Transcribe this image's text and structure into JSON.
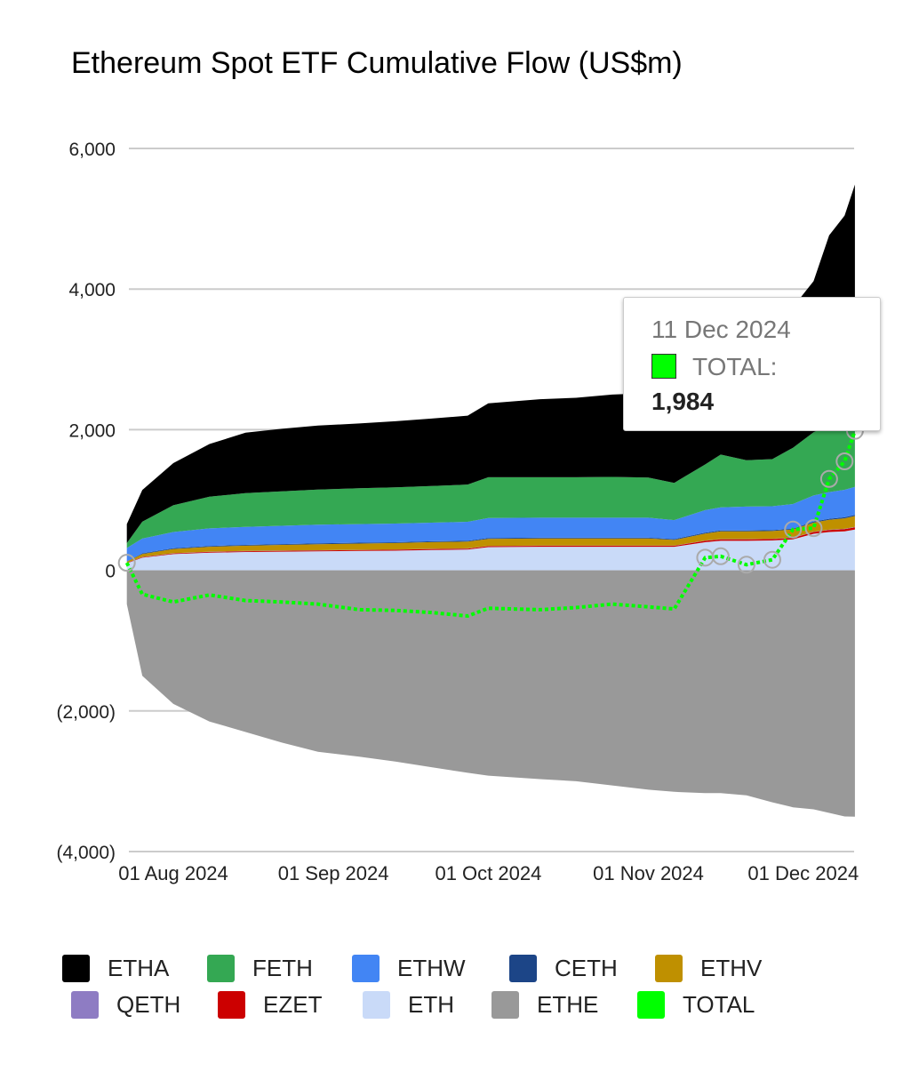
{
  "chart_data": {
    "type": "area",
    "stacked": true,
    "title": "Ethereum Spot ETF Cumulative Flow (US$m)",
    "xlabel": "",
    "ylabel": "",
    "ylim": [
      -4000,
      6000
    ],
    "yticks": [
      6000,
      4000,
      2000,
      0,
      -2000,
      -4000
    ],
    "ytick_labels": [
      "6,000",
      "4,000",
      "2,000",
      "0",
      "(2,000)",
      "(4,000)"
    ],
    "xtick_labels": [
      "01 Aug 2024",
      "01 Sep 2024",
      "01 Oct 2024",
      "01 Nov 2024",
      "01 Dec 2024"
    ],
    "xticks": [
      "2024-08-01",
      "2024-09-01",
      "2024-10-01",
      "2024-11-01",
      "2024-12-01"
    ],
    "grid": true,
    "legend_position": "bottom",
    "x": [
      "2024-07-23",
      "2024-07-26",
      "2024-08-01",
      "2024-08-08",
      "2024-08-15",
      "2024-08-22",
      "2024-08-29",
      "2024-09-06",
      "2024-09-13",
      "2024-09-20",
      "2024-09-27",
      "2024-10-01",
      "2024-10-11",
      "2024-10-18",
      "2024-10-25",
      "2024-11-01",
      "2024-11-06",
      "2024-11-12",
      "2024-11-15",
      "2024-11-20",
      "2024-11-25",
      "2024-11-29",
      "2024-12-03",
      "2024-12-06",
      "2024-12-09",
      "2024-12-11"
    ],
    "series": [
      {
        "name": "ETH",
        "color": "#c9daf8",
        "values": [
          100,
          180,
          230,
          250,
          260,
          265,
          270,
          275,
          280,
          290,
          295,
          330,
          335,
          335,
          335,
          335,
          335,
          400,
          420,
          420,
          425,
          440,
          520,
          545,
          555,
          580
        ]
      },
      {
        "name": "EZET",
        "color": "#cc0000",
        "values": [
          5,
          8,
          10,
          12,
          12,
          13,
          13,
          13,
          13,
          13,
          14,
          14,
          14,
          14,
          14,
          14,
          14,
          20,
          20,
          20,
          20,
          22,
          25,
          28,
          30,
          32
        ]
      },
      {
        "name": "QETH",
        "color": "#8e7cc3",
        "values": [
          2,
          3,
          3,
          3,
          3,
          3,
          3,
          3,
          3,
          3,
          3,
          3,
          3,
          3,
          3,
          3,
          3,
          4,
          4,
          4,
          4,
          4,
          4,
          5,
          5,
          5
        ]
      },
      {
        "name": "ETHV",
        "color": "#bf9000",
        "values": [
          15,
          40,
          60,
          70,
          75,
          80,
          85,
          90,
          92,
          95,
          96,
          100,
          100,
          100,
          100,
          100,
          80,
          100,
          110,
          110,
          110,
          115,
          130,
          140,
          150,
          155
        ]
      },
      {
        "name": "CETH",
        "color": "#1c4587",
        "values": [
          5,
          10,
          12,
          12,
          12,
          12,
          12,
          12,
          12,
          12,
          12,
          12,
          12,
          12,
          12,
          12,
          12,
          12,
          12,
          12,
          12,
          12,
          15,
          15,
          15,
          15
        ]
      },
      {
        "name": "ETHW",
        "color": "#4285f4",
        "values": [
          190,
          210,
          230,
          250,
          255,
          260,
          265,
          265,
          265,
          265,
          270,
          285,
          285,
          285,
          285,
          285,
          270,
          320,
          330,
          340,
          340,
          350,
          370,
          380,
          390,
          400
        ]
      },
      {
        "name": "FETH",
        "color": "#34a853",
        "values": [
          70,
          240,
          380,
          450,
          480,
          490,
          500,
          510,
          515,
          520,
          530,
          580,
          575,
          575,
          580,
          570,
          530,
          650,
          750,
          660,
          670,
          800,
          900,
          950,
          1000,
          1050
        ]
      },
      {
        "name": "ETHA",
        "color": "#000000",
        "values": [
          270,
          450,
          600,
          750,
          860,
          890,
          910,
          920,
          940,
          960,
          980,
          1050,
          1110,
          1130,
          1170,
          1200,
          1110,
          1200,
          1280,
          1400,
          1650,
          2000,
          2150,
          2700,
          2900,
          3250
        ]
      },
      {
        "name": "ETHE",
        "color": "#999999",
        "values": [
          -480,
          -1500,
          -1900,
          -2150,
          -2300,
          -2450,
          -2580,
          -2650,
          -2720,
          -2800,
          -2880,
          -2920,
          -2970,
          -3000,
          -3060,
          -3120,
          -3150,
          -3170,
          -3170,
          -3200,
          -3300,
          -3370,
          -3400,
          -3450,
          -3500,
          -3503
        ]
      },
      {
        "name": "TOTAL",
        "color": "#00ff00",
        "line": true,
        "values": [
          107,
          -340,
          -450,
          -350,
          -430,
          -450,
          -480,
          -560,
          -570,
          -600,
          -650,
          -540,
          -560,
          -530,
          -480,
          -520,
          -550,
          180,
          200,
          80,
          150,
          580,
          600,
          1300,
          1550,
          1984
        ]
      }
    ]
  },
  "tooltip": {
    "date": "11 Dec 2024",
    "label": "TOTAL:",
    "value": "1,984",
    "color": "#00ff00"
  },
  "legend": [
    {
      "name": "ETHA",
      "color": "#000000"
    },
    {
      "name": "FETH",
      "color": "#34a853"
    },
    {
      "name": "ETHW",
      "color": "#4285f4"
    },
    {
      "name": "CETH",
      "color": "#1c4587"
    },
    {
      "name": "ETHV",
      "color": "#bf9000"
    },
    {
      "name": "QETH",
      "color": "#8e7cc3"
    },
    {
      "name": "EZET",
      "color": "#cc0000"
    },
    {
      "name": "ETH",
      "color": "#c9daf8"
    },
    {
      "name": "ETHE",
      "color": "#999999"
    },
    {
      "name": "TOTAL",
      "color": "#00ff00"
    }
  ]
}
